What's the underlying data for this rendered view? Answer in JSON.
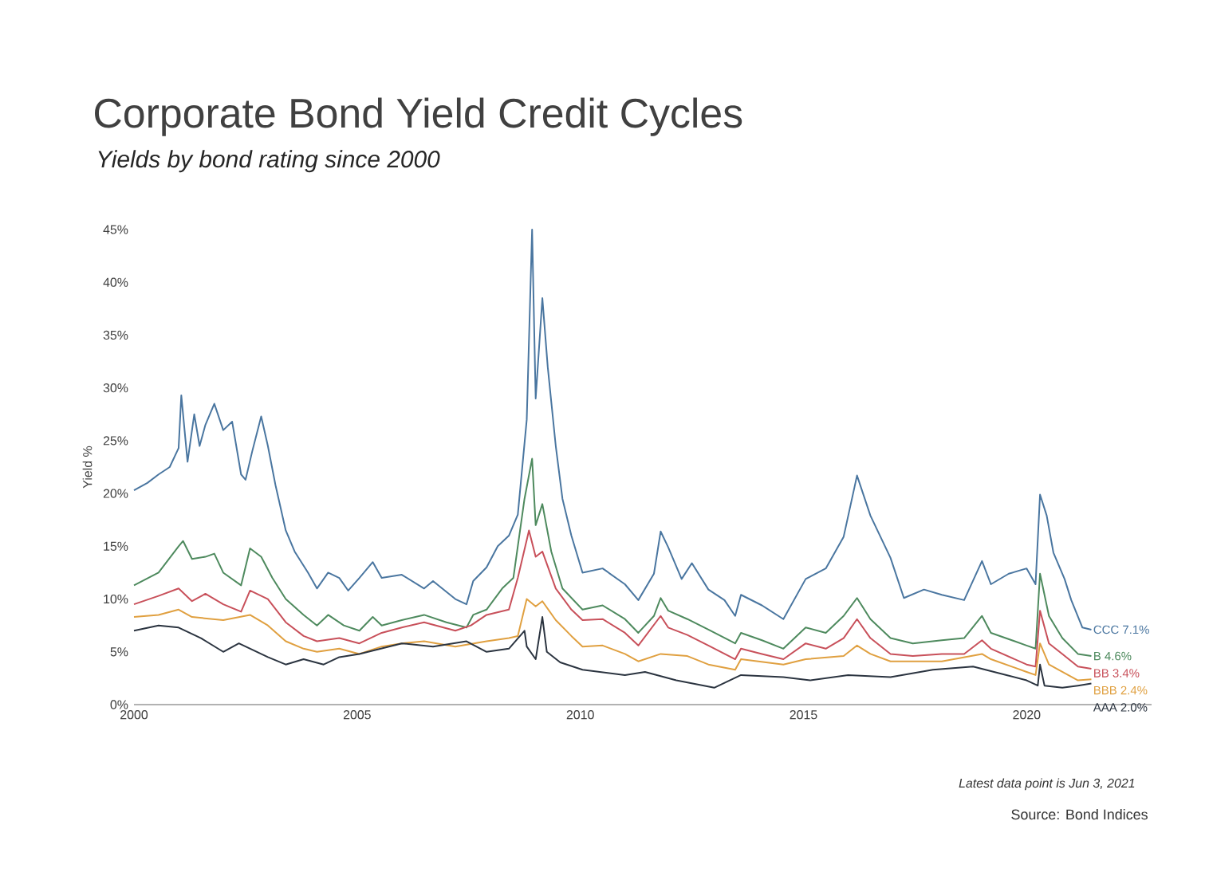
{
  "chart_data": {
    "type": "line",
    "title": "Corporate Bond Yield Credit Cycles",
    "subtitle": "*Yields by bond rating since 2000*",
    "ylabel": "Yield %",
    "annotations": [
      "*Latest data point is Jun 3, 2021*",
      "Source: Bond Indices"
    ],
    "xlim": [
      2000,
      2022.8
    ],
    "xticks": [
      2000,
      2005,
      2010,
      2015,
      2020
    ],
    "ylim": [
      0,
      45
    ],
    "yticks": [
      {
        "value": 0,
        "label": "0%"
      },
      {
        "value": 5,
        "label": "5%"
      },
      {
        "value": 10,
        "label": "10%"
      },
      {
        "value": 15,
        "label": "15%"
      },
      {
        "value": 20,
        "label": "20%"
      },
      {
        "value": 25,
        "label": "25%"
      },
      {
        "value": 30,
        "label": "30%"
      },
      {
        "value": 35,
        "label": "35%"
      },
      {
        "value": 40,
        "label": "40%"
      },
      {
        "value": 45,
        "label": "45%"
      }
    ],
    "grid": false,
    "legend": false,
    "series": [
      {
        "name": "CCC 7.1%",
        "color": "#4a76a0",
        "x": [
          2000.0,
          2000.3,
          2000.55,
          2000.8,
          2001.0,
          2001.06,
          2001.2,
          2001.35,
          2001.47,
          2001.6,
          2001.8,
          2002.0,
          2002.2,
          2002.4,
          2002.5,
          2002.65,
          2002.85,
          2003.0,
          2003.17,
          2003.4,
          2003.6,
          2003.9,
          2004.1,
          2004.35,
          2004.6,
          2004.8,
          2005.05,
          2005.35,
          2005.55,
          2006.0,
          2006.5,
          2006.7,
          2007.2,
          2007.45,
          2007.6,
          2007.9,
          2008.15,
          2008.4,
          2008.6,
          2008.8,
          2008.92,
          2009.0,
          2009.15,
          2009.27,
          2009.45,
          2009.6,
          2009.8,
          2010.05,
          2010.5,
          2011.0,
          2011.3,
          2011.65,
          2011.8,
          2011.97,
          2012.27,
          2012.5,
          2012.87,
          2013.23,
          2013.47,
          2013.6,
          2014.07,
          2014.55,
          2015.05,
          2015.5,
          2015.9,
          2016.2,
          2016.5,
          2016.95,
          2017.25,
          2017.7,
          2018.1,
          2018.6,
          2019.0,
          2019.2,
          2019.6,
          2020.0,
          2020.2,
          2020.3,
          2020.45,
          2020.6,
          2020.85,
          2021.0,
          2021.25,
          2021.45
        ],
        "values": [
          20.3,
          21,
          21.8,
          22.5,
          24.3,
          29.3,
          23,
          27.5,
          24.5,
          26.5,
          28.5,
          26,
          26.8,
          21.8,
          21.3,
          24,
          27.3,
          24.5,
          20.8,
          16.5,
          14.5,
          12.5,
          11,
          12.5,
          12,
          10.8,
          12,
          13.5,
          12,
          12.3,
          11,
          11.7,
          10,
          9.5,
          11.7,
          13,
          15,
          16,
          18,
          27,
          45,
          29,
          38.5,
          32,
          24.5,
          19.5,
          16,
          12.5,
          12.9,
          11.4,
          9.9,
          12.4,
          16.4,
          14.9,
          11.9,
          13.4,
          10.9,
          9.9,
          8.4,
          10.4,
          9.4,
          8.1,
          11.9,
          12.9,
          15.9,
          21.7,
          17.9,
          13.9,
          10.1,
          10.9,
          10.4,
          9.9,
          13.6,
          11.4,
          12.4,
          12.9,
          11.4,
          19.9,
          17.9,
          14.4,
          11.9,
          9.9,
          7.3,
          7.1
        ]
      },
      {
        "name": "B 4.6%",
        "color": "#4e8a5e",
        "x": [
          2000.0,
          2000.55,
          2001.0,
          2001.1,
          2001.3,
          2001.6,
          2001.8,
          2002.0,
          2002.4,
          2002.6,
          2002.85,
          2003.1,
          2003.4,
          2003.8,
          2004.1,
          2004.35,
          2004.7,
          2005.05,
          2005.35,
          2005.55,
          2006.0,
          2006.5,
          2007.0,
          2007.45,
          2007.6,
          2007.9,
          2008.25,
          2008.5,
          2008.75,
          2008.92,
          2009.0,
          2009.15,
          2009.35,
          2009.6,
          2010.05,
          2010.5,
          2011.0,
          2011.3,
          2011.65,
          2011.8,
          2011.97,
          2012.4,
          2012.87,
          2013.47,
          2013.6,
          2014.07,
          2014.55,
          2015.05,
          2015.5,
          2015.9,
          2016.2,
          2016.5,
          2016.95,
          2017.45,
          2018.1,
          2018.6,
          2019.0,
          2019.2,
          2020.0,
          2020.2,
          2020.3,
          2020.5,
          2020.8,
          2021.15,
          2021.45
        ],
        "values": [
          11.3,
          12.5,
          15,
          15.5,
          13.8,
          14,
          14.3,
          12.5,
          11.3,
          14.8,
          14,
          12,
          10,
          8.5,
          7.5,
          8.5,
          7.5,
          7,
          8.3,
          7.5,
          8,
          8.5,
          7.8,
          7.3,
          8.5,
          9,
          11,
          12,
          19.5,
          23.3,
          17,
          19,
          14.5,
          11,
          9,
          9.4,
          8.1,
          6.8,
          8.4,
          10.1,
          8.9,
          8.1,
          7.1,
          5.8,
          6.8,
          6.1,
          5.3,
          7.3,
          6.8,
          8.4,
          10.1,
          8.1,
          6.3,
          5.8,
          6.1,
          6.3,
          8.4,
          6.8,
          5.6,
          5.3,
          12.4,
          8.4,
          6.3,
          4.8,
          4.6
        ]
      },
      {
        "name": "BB 3.4%",
        "color": "#c8505a",
        "x": [
          2000.0,
          2000.55,
          2001.0,
          2001.3,
          2001.6,
          2002.0,
          2002.4,
          2002.6,
          2003.0,
          2003.4,
          2003.8,
          2004.1,
          2004.6,
          2005.05,
          2005.55,
          2006.0,
          2006.5,
          2007.2,
          2007.55,
          2007.9,
          2008.4,
          2008.6,
          2008.85,
          2009.0,
          2009.15,
          2009.45,
          2009.8,
          2010.05,
          2010.5,
          2011.0,
          2011.3,
          2011.8,
          2011.97,
          2012.4,
          2012.87,
          2013.47,
          2013.6,
          2014.07,
          2014.55,
          2015.05,
          2015.5,
          2015.9,
          2016.2,
          2016.5,
          2016.95,
          2017.45,
          2018.1,
          2018.6,
          2019.0,
          2019.2,
          2020.0,
          2020.2,
          2020.3,
          2020.5,
          2020.8,
          2021.15,
          2021.45
        ],
        "values": [
          9.5,
          10.3,
          11,
          9.8,
          10.5,
          9.5,
          8.8,
          10.8,
          10,
          7.8,
          6.5,
          6,
          6.3,
          5.8,
          6.8,
          7.3,
          7.8,
          7,
          7.5,
          8.5,
          9,
          12,
          16.5,
          14,
          14.5,
          11,
          9,
          8,
          8.1,
          6.8,
          5.6,
          8.4,
          7.3,
          6.6,
          5.6,
          4.3,
          5.3,
          4.8,
          4.3,
          5.8,
          5.3,
          6.3,
          8.1,
          6.3,
          4.8,
          4.6,
          4.8,
          4.8,
          6.1,
          5.3,
          3.8,
          3.6,
          8.9,
          5.8,
          4.8,
          3.6,
          3.4
        ]
      },
      {
        "name": "BBB 2.4%",
        "color": "#e0a040",
        "x": [
          2000.0,
          2000.55,
          2001.0,
          2001.3,
          2002.0,
          2002.6,
          2003.0,
          2003.4,
          2003.8,
          2004.1,
          2004.6,
          2005.05,
          2005.55,
          2006.0,
          2006.5,
          2007.2,
          2007.9,
          2008.4,
          2008.6,
          2008.8,
          2009.0,
          2009.15,
          2009.45,
          2009.8,
          2010.05,
          2010.5,
          2011.0,
          2011.3,
          2011.8,
          2012.4,
          2012.87,
          2013.47,
          2013.6,
          2014.55,
          2015.05,
          2015.9,
          2016.2,
          2016.5,
          2016.95,
          2018.1,
          2019.0,
          2019.2,
          2020.0,
          2020.2,
          2020.3,
          2020.5,
          2020.8,
          2021.15,
          2021.45
        ],
        "values": [
          8.3,
          8.5,
          9,
          8.3,
          8,
          8.5,
          7.5,
          6,
          5.3,
          5,
          5.3,
          4.8,
          5.5,
          5.8,
          6,
          5.5,
          6,
          6.3,
          6.5,
          10,
          9.3,
          9.8,
          8,
          6.5,
          5.5,
          5.6,
          4.8,
          4.1,
          4.8,
          4.6,
          3.8,
          3.3,
          4.3,
          3.8,
          4.3,
          4.6,
          5.6,
          4.8,
          4.1,
          4.1,
          4.8,
          4.3,
          3.1,
          2.8,
          5.8,
          3.8,
          3.1,
          2.3,
          2.4
        ]
      },
      {
        "name": "AAA 2.0%",
        "color": "#2b3440",
        "x": [
          2000.0,
          2000.55,
          2001.0,
          2001.5,
          2002.0,
          2002.35,
          2003.0,
          2003.4,
          2003.8,
          2004.25,
          2004.6,
          2005.05,
          2006.0,
          2006.7,
          2007.45,
          2007.9,
          2008.4,
          2008.75,
          2008.8,
          2009.0,
          2009.15,
          2009.25,
          2009.55,
          2010.05,
          2011.0,
          2011.45,
          2012.15,
          2013.0,
          2013.6,
          2014.55,
          2015.15,
          2016.0,
          2016.95,
          2017.9,
          2018.8,
          2019.55,
          2020.0,
          2020.25,
          2020.3,
          2020.4,
          2020.8,
          2021.15,
          2021.45
        ],
        "values": [
          7,
          7.5,
          7.3,
          6.3,
          5,
          5.8,
          4.5,
          3.8,
          4.3,
          3.8,
          4.5,
          4.8,
          5.8,
          5.5,
          6,
          5,
          5.3,
          7,
          5.5,
          4.3,
          8.3,
          5,
          4,
          3.3,
          2.8,
          3.1,
          2.3,
          1.6,
          2.8,
          2.6,
          2.3,
          2.8,
          2.6,
          3.3,
          3.6,
          2.8,
          2.3,
          1.8,
          3.8,
          1.8,
          1.6,
          1.8,
          2.0
        ]
      }
    ]
  }
}
